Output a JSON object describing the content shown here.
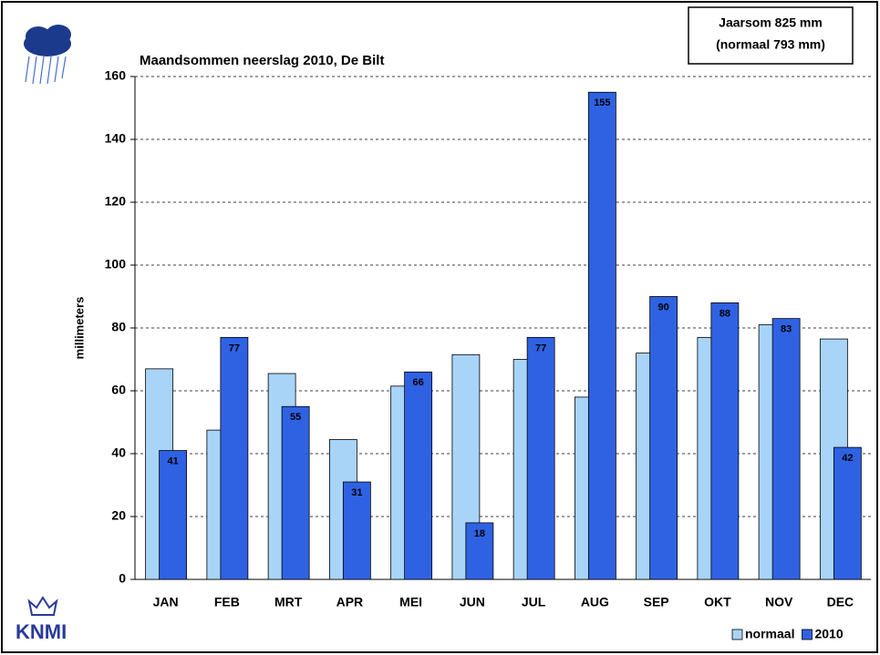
{
  "chart_data": {
    "type": "bar",
    "title": "Maandsommen neerslag 2010, De Bilt",
    "y_label": "millimeters",
    "annotations": [
      "Jaarsom 825 mm",
      "(normaal  793 mm)"
    ],
    "logo": "KNMI",
    "categories": [
      "JAN",
      "FEB",
      "MRT",
      "APR",
      "MEI",
      "JUN",
      "JUL",
      "AUG",
      "SEP",
      "OKT",
      "NOV",
      "DEC"
    ],
    "series": [
      {
        "name": "normaal",
        "color": "#a8d4f7",
        "values": [
          67,
          47.5,
          65.5,
          44.5,
          61.5,
          71.5,
          70,
          58,
          72,
          77,
          81,
          76.5
        ]
      },
      {
        "name": "2010",
        "color": "#2f62e3",
        "values": [
          41,
          77,
          55,
          31,
          66,
          18,
          77,
          155,
          90,
          88,
          83,
          42
        ]
      }
    ],
    "ylim": [
      0,
      160
    ],
    "yticks": [
      0,
      20,
      40,
      60,
      80,
      100,
      120,
      140,
      160
    ],
    "grid": true
  }
}
